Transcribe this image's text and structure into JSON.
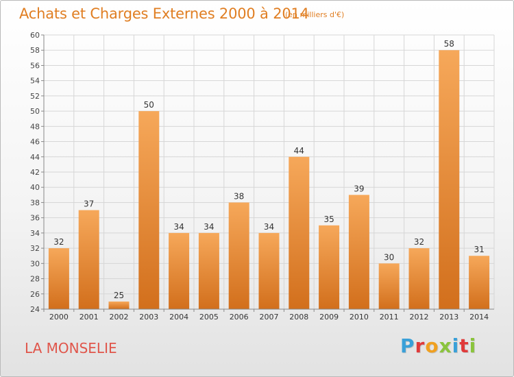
{
  "header": {
    "title": "Achats et Charges Externes 2000 à 2014",
    "unit_note": "(en milliers d'€)"
  },
  "footer": {
    "commune": "LA MONSELIE",
    "brand": "Proxiti",
    "brand_letters": [
      {
        "ch": "P",
        "color": "#3aa0d8"
      },
      {
        "ch": "r",
        "color": "#e03a3a"
      },
      {
        "ch": "o",
        "color": "#f0a020"
      },
      {
        "ch": "x",
        "color": "#8ac43c"
      },
      {
        "ch": "i",
        "color": "#3aa0d8"
      },
      {
        "ch": "t",
        "color": "#e03a3a"
      },
      {
        "ch": "i",
        "color": "#8ac43c"
      }
    ]
  },
  "colors": {
    "accent": "#e07e22",
    "bar_light": "#f6a85a",
    "bar_dark": "#d26f1c",
    "commune": "#e0554a"
  },
  "chart_data": {
    "type": "bar",
    "categories": [
      "2000",
      "2001",
      "2002",
      "2003",
      "2004",
      "2005",
      "2006",
      "2007",
      "2008",
      "2009",
      "2010",
      "2011",
      "2012",
      "2013",
      "2014"
    ],
    "values": [
      32,
      37,
      25,
      50,
      34,
      34,
      38,
      34,
      44,
      35,
      39,
      30,
      32,
      58,
      31
    ],
    "ylim": [
      24,
      60
    ],
    "yticks": [
      24,
      26,
      28,
      30,
      32,
      34,
      36,
      38,
      40,
      42,
      44,
      46,
      48,
      50,
      52,
      54,
      56,
      58,
      60
    ],
    "grid": true,
    "legend": "none"
  }
}
